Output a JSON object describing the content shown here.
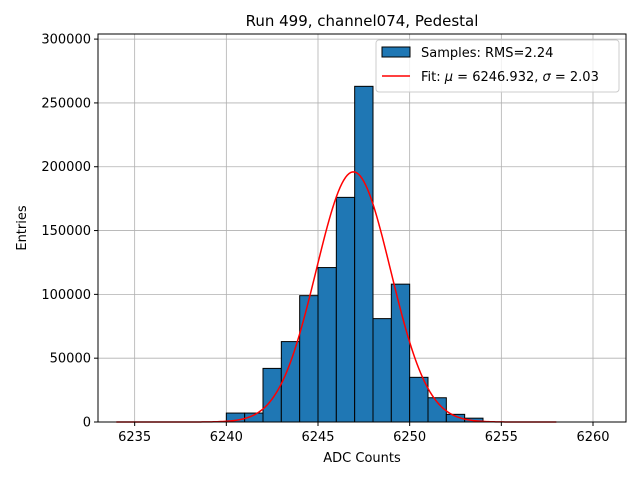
{
  "chart_data": {
    "type": "bar",
    "title": "Run 499, channel074, Pedestal",
    "xlabel": "ADC Counts",
    "ylabel": "Entries",
    "xlim": [
      6233.0,
      6261.8
    ],
    "ylim": [
      0,
      304000
    ],
    "xticks": [
      6235,
      6240,
      6245,
      6250,
      6255,
      6260
    ],
    "yticks": [
      0,
      50000,
      100000,
      150000,
      200000,
      250000,
      300000
    ],
    "grid": true,
    "legend_position": "top-right",
    "histogram": {
      "name": "Samples: RMS=2.24",
      "color": "#1f77b4",
      "bin_edges": [
        6240,
        6241,
        6242,
        6243,
        6244,
        6245,
        6246,
        6247,
        6248,
        6249,
        6250,
        6251,
        6252,
        6253,
        6254
      ],
      "values": [
        7000,
        7000,
        42000,
        63000,
        99000,
        121000,
        176000,
        263000,
        81000,
        108000,
        35000,
        19000,
        6000,
        3000
      ]
    },
    "fit": {
      "legend_prefix": "Fit: ",
      "legend_mu_symbol": "μ",
      "legend_mid": " = 6246.932, ",
      "legend_sigma_symbol": "σ",
      "legend_end": " = 2.03",
      "mu": 6246.932,
      "sigma": 2.03,
      "amplitude": 196000,
      "x_range": [
        6234,
        6258
      ],
      "color": "#ff0000"
    }
  }
}
